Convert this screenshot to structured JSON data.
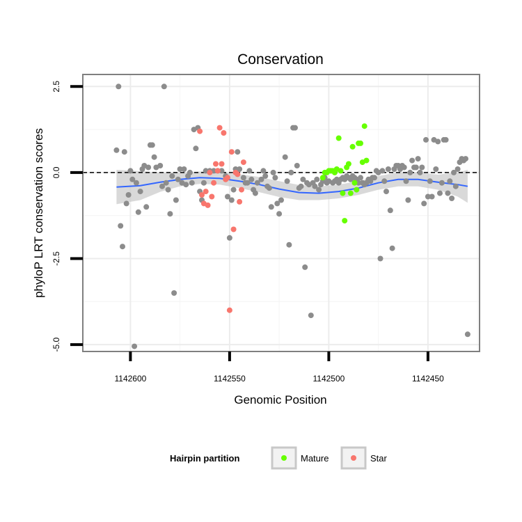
{
  "chart_data": {
    "type": "scatter",
    "title": "Conservation",
    "xlabel": "Genomic Position",
    "ylabel": "phyloP LRT conservation scores",
    "x_reversed": true,
    "xlim": [
      1142624,
      1142424
    ],
    "ylim": [
      -5.2,
      2.85
    ],
    "x_ticks": [
      1142600,
      1142550,
      1142500,
      1142450
    ],
    "x_tick_labels": [
      "1142600",
      "1142550",
      "1142500",
      "1142450"
    ],
    "y_ticks": [
      2.5,
      0.0,
      -2.5,
      -5.0
    ],
    "y_tick_labels": [
      "2.5",
      "0.0",
      "-2.5",
      "-5.0"
    ],
    "reference_line": {
      "y": 0.0,
      "style": "dashed"
    },
    "grid": true,
    "legend": {
      "title": "Hairpin partition",
      "placement": "bottom",
      "entries": [
        {
          "label": "Mature",
          "color": "#66ff00"
        },
        {
          "label": "Star",
          "color": "#f8766d"
        }
      ]
    },
    "colors": {
      "other": "#8c8c8c",
      "mature": "#66ff00",
      "star": "#f8766d",
      "smooth": "#3366ff",
      "ribbon": "#cccccc"
    },
    "series": [
      {
        "key": "other",
        "points": [
          [
            1142606,
            2.5
          ],
          [
            1142607,
            0.65
          ],
          [
            1142605,
            -1.55
          ],
          [
            1142604,
            -2.15
          ],
          [
            1142603,
            0.6
          ],
          [
            1142602,
            -0.9
          ],
          [
            1142601,
            -0.65
          ],
          [
            1142600,
            0.05
          ],
          [
            1142599,
            -0.2
          ],
          [
            1142598,
            -5.05
          ],
          [
            1142597,
            -0.3
          ],
          [
            1142596,
            -1.15
          ],
          [
            1142595,
            -0.55
          ],
          [
            1142594,
            0.1
          ],
          [
            1142593,
            0.2
          ],
          [
            1142592,
            -1.0
          ],
          [
            1142591,
            0.15
          ],
          [
            1142590,
            0.8
          ],
          [
            1142589,
            0.8
          ],
          [
            1142588,
            0.45
          ],
          [
            1142587,
            0.15
          ],
          [
            1142585,
            0.2
          ],
          [
            1142584,
            -0.4
          ],
          [
            1142583,
            2.5
          ],
          [
            1142582,
            -0.3
          ],
          [
            1142581,
            -0.5
          ],
          [
            1142580,
            -1.2
          ],
          [
            1142579,
            -0.1
          ],
          [
            1142578,
            -3.5
          ],
          [
            1142577,
            -0.8
          ],
          [
            1142576,
            -0.2
          ],
          [
            1142575,
            0.1
          ],
          [
            1142574,
            -0.3
          ],
          [
            1142573,
            0.1
          ],
          [
            1142572,
            -0.35
          ],
          [
            1142571,
            -0.1
          ],
          [
            1142570,
            0.0
          ],
          [
            1142569,
            -0.3
          ],
          [
            1142568,
            1.25
          ],
          [
            1142567,
            0.7
          ],
          [
            1142566,
            1.3
          ],
          [
            1142565,
            -0.55
          ],
          [
            1142564,
            -0.8
          ],
          [
            1142563,
            -0.3
          ],
          [
            1142562,
            0.05
          ],
          [
            1142560,
            0.05
          ],
          [
            1142558,
            0.05
          ],
          [
            1142556,
            0.05
          ],
          [
            1142554,
            0.05
          ],
          [
            1142552,
            -0.1
          ],
          [
            1142551,
            -0.7
          ],
          [
            1142550,
            -1.9
          ],
          [
            1142549,
            -0.8
          ],
          [
            1142548,
            -0.5
          ],
          [
            1142547,
            0.1
          ],
          [
            1142546,
            0.6
          ],
          [
            1142545,
            0.1
          ],
          [
            1142543,
            -0.15
          ],
          [
            1142542,
            -0.3
          ],
          [
            1142541,
            -0.3
          ],
          [
            1142540,
            0.05
          ],
          [
            1142539,
            -0.2
          ],
          [
            1142538,
            -0.5
          ],
          [
            1142537,
            -0.6
          ],
          [
            1142536,
            -0.3
          ],
          [
            1142534,
            -0.2
          ],
          [
            1142533,
            0.05
          ],
          [
            1142532,
            -0.1
          ],
          [
            1142531,
            -0.4
          ],
          [
            1142530,
            -0.45
          ],
          [
            1142529,
            -1.0
          ],
          [
            1142528,
            0.0
          ],
          [
            1142527,
            -0.15
          ],
          [
            1142526,
            -0.9
          ],
          [
            1142525,
            -1.2
          ],
          [
            1142524,
            -0.8
          ],
          [
            1142522,
            0.45
          ],
          [
            1142521,
            -0.25
          ],
          [
            1142520,
            -2.1
          ],
          [
            1142519,
            0.0
          ],
          [
            1142518,
            1.3
          ],
          [
            1142517,
            1.3
          ],
          [
            1142516,
            0.2
          ],
          [
            1142515,
            -0.45
          ],
          [
            1142514,
            -0.4
          ],
          [
            1142513,
            -0.2
          ],
          [
            1142512,
            -2.75
          ],
          [
            1142511,
            -0.3
          ],
          [
            1142510,
            -0.35
          ],
          [
            1142509,
            -4.15
          ],
          [
            1142508,
            -0.3
          ],
          [
            1142507,
            -0.4
          ],
          [
            1142506,
            -0.2
          ],
          [
            1142505,
            -0.5
          ],
          [
            1142504,
            -0.35
          ],
          [
            1142503,
            -0.25
          ],
          [
            1142502,
            -0.15
          ],
          [
            1142501,
            -0.3
          ],
          [
            1142500,
            -0.25
          ],
          [
            1142499,
            0.05
          ],
          [
            1142498,
            -0.3
          ],
          [
            1142497,
            -0.25
          ],
          [
            1142496,
            -0.2
          ],
          [
            1142495,
            -0.3
          ],
          [
            1142494,
            -0.2
          ],
          [
            1142493,
            -0.15
          ],
          [
            1142492,
            -0.2
          ],
          [
            1142491,
            -0.1
          ],
          [
            1142490,
            -0.15
          ],
          [
            1142489,
            -0.2
          ],
          [
            1142488,
            -0.1
          ],
          [
            1142487,
            -0.15
          ],
          [
            1142486,
            -0.2
          ],
          [
            1142485,
            -0.3
          ],
          [
            1142484,
            -0.15
          ],
          [
            1142483,
            -0.3
          ],
          [
            1142482,
            -0.35
          ],
          [
            1142481,
            -0.3
          ],
          [
            1142480,
            -0.2
          ],
          [
            1142479,
            -0.25
          ],
          [
            1142478,
            -0.15
          ],
          [
            1142477,
            -0.15
          ],
          [
            1142476,
            0.05
          ],
          [
            1142475,
            0.0
          ],
          [
            1142474,
            -2.5
          ],
          [
            1142473,
            0.05
          ],
          [
            1142472,
            -0.25
          ],
          [
            1142471,
            -0.55
          ],
          [
            1142470,
            0.1
          ],
          [
            1142469,
            -1.1
          ],
          [
            1142468,
            -2.2
          ],
          [
            1142467,
            0.1
          ],
          [
            1142466,
            0.2
          ],
          [
            1142465,
            0.2
          ],
          [
            1142464,
            0.1
          ],
          [
            1142463,
            0.2
          ],
          [
            1142462,
            0.15
          ],
          [
            1142461,
            -0.25
          ],
          [
            1142460,
            -0.8
          ],
          [
            1142459,
            0.0
          ],
          [
            1142458,
            0.35
          ],
          [
            1142457,
            0.15
          ],
          [
            1142456,
            0.15
          ],
          [
            1142455,
            0.4
          ],
          [
            1142454,
            0.0
          ],
          [
            1142453,
            0.15
          ],
          [
            1142452,
            -0.9
          ],
          [
            1142451,
            0.95
          ],
          [
            1142450,
            -0.7
          ],
          [
            1142449,
            -0.25
          ],
          [
            1142448,
            -0.7
          ],
          [
            1142447,
            0.95
          ],
          [
            1142446,
            0.1
          ],
          [
            1142445,
            0.9
          ],
          [
            1142444,
            -0.6
          ],
          [
            1142443,
            -0.3
          ],
          [
            1142442,
            0.95
          ],
          [
            1142441,
            0.95
          ],
          [
            1142440,
            -0.6
          ],
          [
            1142439,
            -0.25
          ],
          [
            1142438,
            -0.75
          ],
          [
            1142437,
            0.0
          ],
          [
            1142436,
            -0.4
          ],
          [
            1142435,
            0.1
          ],
          [
            1142434,
            0.3
          ],
          [
            1142433,
            0.4
          ],
          [
            1142432,
            0.35
          ],
          [
            1142431,
            0.4
          ],
          [
            1142430,
            -4.7
          ]
        ]
      },
      {
        "key": "star",
        "points": [
          [
            1142565,
            1.2
          ],
          [
            1142564,
            -0.65
          ],
          [
            1142563,
            -0.9
          ],
          [
            1142562,
            -0.55
          ],
          [
            1142561,
            -0.95
          ],
          [
            1142560,
            0.0
          ],
          [
            1142559,
            -0.7
          ],
          [
            1142558,
            -0.3
          ],
          [
            1142557,
            0.25
          ],
          [
            1142556,
            0.05
          ],
          [
            1142555,
            1.3
          ],
          [
            1142554,
            0.25
          ],
          [
            1142553,
            1.15
          ],
          [
            1142552,
            -0.2
          ],
          [
            1142551,
            -0.15
          ],
          [
            1142550,
            -4.0
          ],
          [
            1142549,
            0.6
          ],
          [
            1142548,
            -1.65
          ],
          [
            1142547,
            0.0
          ],
          [
            1142546,
            -0.05
          ],
          [
            1142545,
            -0.85
          ],
          [
            1142544,
            -0.5
          ],
          [
            1142543,
            0.3
          ]
        ]
      },
      {
        "key": "mature",
        "points": [
          [
            1142503,
            -0.15
          ],
          [
            1142502,
            0.0
          ],
          [
            1142501,
            0.0
          ],
          [
            1142500,
            0.05
          ],
          [
            1142499,
            0.05
          ],
          [
            1142498,
            0.05
          ],
          [
            1142497,
            0.0
          ],
          [
            1142496,
            0.1
          ],
          [
            1142495,
            1.0
          ],
          [
            1142494,
            0.05
          ],
          [
            1142493,
            -0.6
          ],
          [
            1142492,
            -1.4
          ],
          [
            1142491,
            0.15
          ],
          [
            1142490,
            0.25
          ],
          [
            1142489,
            -0.6
          ],
          [
            1142488,
            0.75
          ],
          [
            1142487,
            -0.3
          ],
          [
            1142486,
            -0.5
          ],
          [
            1142485,
            0.85
          ],
          [
            1142484,
            0.85
          ],
          [
            1142483,
            0.3
          ],
          [
            1142482,
            1.35
          ],
          [
            1142481,
            0.35
          ]
        ]
      }
    ],
    "smooth": {
      "x": [
        1142607,
        1142595,
        1142585,
        1142575,
        1142565,
        1142555,
        1142545,
        1142535,
        1142525,
        1142515,
        1142505,
        1142495,
        1142485,
        1142475,
        1142465,
        1142455,
        1142445,
        1142435,
        1142430
      ],
      "y": [
        -0.42,
        -0.38,
        -0.28,
        -0.2,
        -0.15,
        -0.17,
        -0.25,
        -0.35,
        -0.48,
        -0.58,
        -0.6,
        -0.55,
        -0.45,
        -0.3,
        -0.2,
        -0.2,
        -0.28,
        -0.35,
        -0.4
      ],
      "se": [
        0.5,
        0.42,
        0.28,
        0.2,
        0.18,
        0.18,
        0.2,
        0.22,
        0.23,
        0.22,
        0.2,
        0.2,
        0.2,
        0.2,
        0.2,
        0.2,
        0.22,
        0.35,
        0.48
      ]
    }
  }
}
